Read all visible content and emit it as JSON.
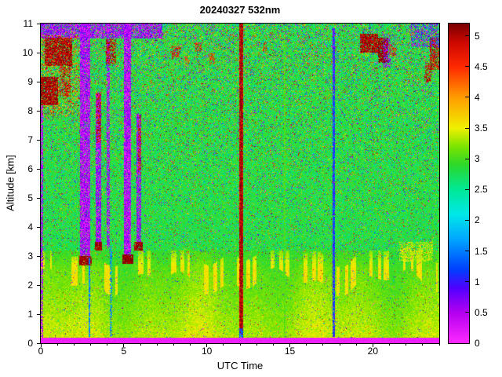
{
  "title": "20240327 532nm",
  "axes": {
    "x": {
      "label": "UTC Time",
      "range": [
        0,
        24
      ],
      "major_ticks": [
        0,
        5,
        10,
        15,
        20
      ],
      "minor_step": 1
    },
    "y": {
      "label": "Altitude [km]",
      "range": [
        0,
        11
      ],
      "major_ticks": [
        0,
        1,
        2,
        3,
        4,
        5,
        6,
        7,
        8,
        9,
        10,
        11
      ]
    },
    "colorbar": {
      "range": [
        0,
        5.2
      ],
      "tick_values": [
        0,
        0.5,
        1,
        1.5,
        2,
        2.5,
        3,
        3.5,
        4,
        4.5,
        5
      ],
      "tick_labels": [
        "0",
        "0.5",
        "1",
        "1.5",
        "2",
        "2.5",
        "3",
        "3.5",
        "4",
        "4.5",
        "5"
      ]
    }
  },
  "chart_data": {
    "type": "heatmap",
    "title": "20240327 532nm",
    "xlabel": "UTC Time",
    "ylabel": "Altitude [km]",
    "xlim": [
      0,
      24
    ],
    "ylim": [
      0,
      11
    ],
    "value_range": [
      0,
      5.2
    ],
    "seed": 1337,
    "colormap_stops": [
      [
        0.0,
        "#ff2aff"
      ],
      [
        0.5,
        "#b400f0"
      ],
      [
        0.9,
        "#5000ff"
      ],
      [
        1.2,
        "#0040ff"
      ],
      [
        1.7,
        "#00a8ff"
      ],
      [
        2.1,
        "#00e8e8"
      ],
      [
        2.5,
        "#00e896"
      ],
      [
        2.9,
        "#2cd82c"
      ],
      [
        3.2,
        "#7ce400"
      ],
      [
        3.5,
        "#f0f000"
      ],
      [
        4.0,
        "#ff9c00"
      ],
      [
        4.5,
        "#ff2800"
      ],
      [
        4.9,
        "#cc0800"
      ],
      [
        5.2,
        "#780000"
      ]
    ],
    "background": {
      "upper": {
        "base": 2.82,
        "noise": 0.55,
        "speckle_min": 0.07,
        "speckle_gain": 0.24
      },
      "lower": {
        "base": 3.38,
        "slope": 0.38,
        "blend_alt": 3.2,
        "noise": 0.18,
        "speckle": 0.035
      },
      "boundary_layer": {
        "alt": 2.55,
        "wave": 0.3,
        "puff_value": 3.6
      },
      "bottom_strip": {
        "top_alt": 0.2,
        "value": 0.12
      }
    },
    "features": [
      {
        "name": "left-edge-column",
        "x": [
          0.0,
          0.14
        ],
        "y": [
          0.2,
          8.2
        ],
        "v": 0.5,
        "p": 0.65,
        "j": 0.45
      },
      {
        "name": "top-purple-band",
        "x": [
          0.0,
          7.3
        ],
        "y": [
          10.5,
          11.0
        ],
        "v": 0.5,
        "p": 0.7,
        "j": 0.5
      },
      {
        "name": "left-cloud-scatter",
        "x": [
          0.0,
          2.3
        ],
        "y": [
          7.8,
          10.6
        ],
        "v": 4.3,
        "p": 0.22,
        "j": 0.9
      },
      {
        "name": "left-cloud-lower",
        "x": [
          0.0,
          1.05
        ],
        "y": [
          8.2,
          9.15
        ],
        "v": 5.05,
        "p": 0.85,
        "j": 0.35
      },
      {
        "name": "left-cloud-upper",
        "x": [
          0.25,
          1.9
        ],
        "y": [
          9.55,
          10.5
        ],
        "v": 5.0,
        "p": 0.8,
        "j": 0.4
      },
      {
        "name": "left-cloud-mid-speckle",
        "x": [
          1.15,
          1.8
        ],
        "y": [
          8.5,
          9.5
        ],
        "v": 4.8,
        "p": 0.5,
        "j": 0.5
      },
      {
        "name": "column-1-purple",
        "x": [
          2.38,
          2.98
        ],
        "y": [
          2.95,
          11.0
        ],
        "v": 0.45,
        "p": 0.88,
        "j": 0.5
      },
      {
        "name": "column-1-cloudbase",
        "x": [
          2.3,
          3.05
        ],
        "y": [
          2.68,
          3.0
        ],
        "v": 5.1,
        "p": 0.93,
        "j": 0.25
      },
      {
        "name": "column-1-blue-ground",
        "x": [
          2.86,
          2.99
        ],
        "y": [
          0.22,
          2.95
        ],
        "v": 1.5,
        "p": 0.85,
        "j": 0.3
      },
      {
        "name": "column-2-purple",
        "x": [
          3.33,
          3.63
        ],
        "y": [
          3.35,
          8.6
        ],
        "v": 0.5,
        "p": 0.85,
        "j": 0.5
      },
      {
        "name": "column-2-red-top",
        "x": [
          3.36,
          3.62
        ],
        "y": [
          6.9,
          8.6
        ],
        "v": 4.9,
        "p": 0.5,
        "j": 0.45
      },
      {
        "name": "column-2-cloudbase",
        "x": [
          3.27,
          3.7
        ],
        "y": [
          3.18,
          3.48
        ],
        "v": 5.1,
        "p": 0.9,
        "j": 0.25
      },
      {
        "name": "column-3-purple",
        "x": [
          3.98,
          4.18
        ],
        "y": [
          3.3,
          11.0
        ],
        "v": 0.5,
        "p": 0.7,
        "j": 0.5
      },
      {
        "name": "column-3-red-top",
        "x": [
          3.9,
          4.55
        ],
        "y": [
          9.6,
          10.45
        ],
        "v": 4.9,
        "p": 0.55,
        "j": 0.45
      },
      {
        "name": "column-3-blue-ground",
        "x": [
          4.18,
          4.28
        ],
        "y": [
          0.22,
          3.3
        ],
        "v": 1.6,
        "p": 0.5,
        "j": 0.35
      },
      {
        "name": "column-4-purple",
        "x": [
          5.02,
          5.45
        ],
        "y": [
          2.95,
          11.0
        ],
        "v": 0.42,
        "p": 0.9,
        "j": 0.5
      },
      {
        "name": "column-4-cloudbase",
        "x": [
          4.9,
          5.58
        ],
        "y": [
          2.72,
          3.05
        ],
        "v": 5.15,
        "p": 0.95,
        "j": 0.2
      },
      {
        "name": "column-5-purple",
        "x": [
          5.75,
          6.05
        ],
        "y": [
          3.35,
          7.9
        ],
        "v": 0.55,
        "p": 0.8,
        "j": 0.5
      },
      {
        "name": "column-5-red",
        "x": [
          5.85,
          6.07
        ],
        "y": [
          5.8,
          7.9
        ],
        "v": 4.8,
        "p": 0.45,
        "j": 0.5
      },
      {
        "name": "column-5-cloudbase",
        "x": [
          5.6,
          6.12
        ],
        "y": [
          3.18,
          3.48
        ],
        "v": 5.1,
        "p": 0.9,
        "j": 0.25
      },
      {
        "name": "red-column-12utc",
        "x": [
          11.93,
          12.18
        ],
        "y": [
          0.3,
          11.0
        ],
        "v": 4.85,
        "p": 0.96,
        "j": 0.45
      },
      {
        "name": "red-column-core",
        "x": [
          11.99,
          12.12
        ],
        "y": [
          0.3,
          11.0
        ],
        "v": 5.12,
        "p": 0.55,
        "j": 0.12
      },
      {
        "name": "red-column-bottom-blue",
        "x": [
          11.93,
          12.18
        ],
        "y": [
          0.2,
          0.5
        ],
        "v": 1.3,
        "p": 0.75,
        "j": 0.3
      },
      {
        "name": "faint-line-14-7utc",
        "x": [
          14.64,
          14.74
        ],
        "y": [
          0.22,
          10.6
        ],
        "v": 3.05,
        "p": 0.85,
        "j": 0.15
      },
      {
        "name": "blue-column-17-6utc",
        "x": [
          17.58,
          17.74
        ],
        "y": [
          0.22,
          10.85
        ],
        "v": 1.15,
        "p": 0.9,
        "j": 0.35
      },
      {
        "name": "blue-column-top-purple",
        "x": [
          17.58,
          17.74
        ],
        "y": [
          9.0,
          10.85
        ],
        "v": 0.7,
        "p": 0.45,
        "j": 0.4
      },
      {
        "name": "right-cloud-1",
        "x": [
          19.25,
          20.32
        ],
        "y": [
          10.0,
          10.65
        ],
        "v": 5.0,
        "p": 0.82,
        "j": 0.35
      },
      {
        "name": "right-cloud-2",
        "x": [
          20.3,
          20.92
        ],
        "y": [
          9.65,
          10.5
        ],
        "v": 5.1,
        "p": 0.85,
        "j": 0.3
      },
      {
        "name": "right-cloud-purple",
        "x": [
          20.6,
          21.05
        ],
        "y": [
          9.5,
          10.65
        ],
        "v": 0.6,
        "p": 0.4,
        "j": 0.45
      },
      {
        "name": "right-cloud-3",
        "x": [
          21.0,
          21.4
        ],
        "y": [
          9.85,
          10.3
        ],
        "v": 4.6,
        "p": 0.4,
        "j": 0.5
      },
      {
        "name": "far-right-red-1",
        "x": [
          23.1,
          23.55
        ],
        "y": [
          9.0,
          9.65
        ],
        "v": 4.8,
        "p": 0.5,
        "j": 0.45
      },
      {
        "name": "far-right-red-2",
        "x": [
          23.45,
          23.98
        ],
        "y": [
          9.4,
          10.5
        ],
        "v": 4.9,
        "p": 0.6,
        "j": 0.4
      },
      {
        "name": "top-right-magenta",
        "x": [
          22.3,
          24.0
        ],
        "y": [
          10.2,
          11.0
        ],
        "v": 0.8,
        "p": 0.4,
        "j": 0.6
      },
      {
        "name": "scatter-8utc",
        "x": [
          7.9,
          8.35
        ],
        "y": [
          9.85,
          10.25
        ],
        "v": 4.7,
        "p": 0.5,
        "j": 0.45
      },
      {
        "name": "scatter-8-7utc",
        "x": [
          8.6,
          8.95
        ],
        "y": [
          9.55,
          9.9
        ],
        "v": 4.4,
        "p": 0.4,
        "j": 0.5
      },
      {
        "name": "scatter-9-4utc",
        "x": [
          9.3,
          9.68
        ],
        "y": [
          10.0,
          10.35
        ],
        "v": 4.7,
        "p": 0.45,
        "j": 0.45
      },
      {
        "name": "scatter-10-2utc",
        "x": [
          10.15,
          10.5
        ],
        "y": [
          9.6,
          10.0
        ],
        "v": 4.5,
        "p": 0.4,
        "j": 0.5
      },
      {
        "name": "scatter-13-5utc",
        "x": [
          13.35,
          13.62
        ],
        "y": [
          10.05,
          10.38
        ],
        "v": 4.6,
        "p": 0.45,
        "j": 0.45
      },
      {
        "name": "light-puffs-right",
        "x": [
          21.6,
          23.6
        ],
        "y": [
          2.8,
          3.5
        ],
        "v": 3.45,
        "p": 0.5,
        "j": 0.2
      }
    ]
  }
}
